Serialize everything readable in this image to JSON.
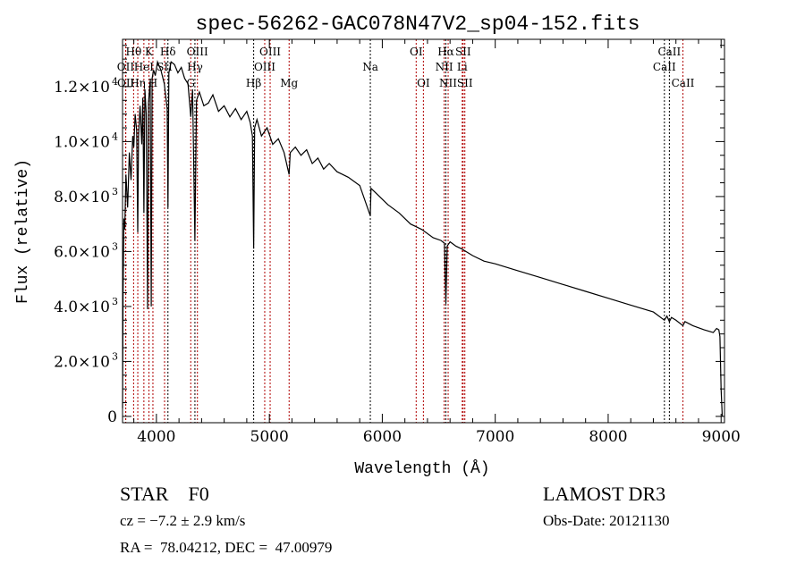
{
  "chart_data": {
    "type": "line",
    "title": "spec-56262-GAC078N47V2_sp04-152.fits",
    "xlabel": "Wavelength (Å)",
    "ylabel": "Flux (relative)",
    "xlim": [
      3700,
      9030
    ],
    "ylim": [
      -230,
      13720
    ],
    "grid": false,
    "xticks": [
      4000,
      5000,
      6000,
      7000,
      8000,
      9000
    ],
    "xtick_labels": [
      "4000",
      "5000",
      "6000",
      "7000",
      "8000",
      "9000"
    ],
    "yticks": [
      0,
      2000,
      4000,
      6000,
      8000,
      10000,
      12000
    ],
    "ytick_labels": [
      "0",
      "2.0×10^3",
      "4.0×10^3",
      "6.0×10^3",
      "8.0×10^3",
      "1.0×10^4",
      "1.2×10^4"
    ],
    "series": [
      {
        "name": "spectrum",
        "x": [
          3700,
          3705,
          3712,
          3720,
          3730,
          3745,
          3760,
          3775,
          3790,
          3800,
          3812,
          3825,
          3835,
          3842,
          3855,
          3870,
          3880,
          3889,
          3898,
          3910,
          3922,
          3930,
          3945,
          3954,
          3962,
          3975,
          3990,
          4010,
          4040,
          4070,
          4095,
          4102,
          4110,
          4130,
          4160,
          4190,
          4220,
          4250,
          4280,
          4304,
          4320,
          4341,
          4355,
          4380,
          4420,
          4460,
          4500,
          4550,
          4600,
          4650,
          4700,
          4750,
          4800,
          4830,
          4850,
          4861,
          4870,
          4890,
          4930,
          4980,
          5030,
          5080,
          5130,
          5175,
          5185,
          5230,
          5280,
          5330,
          5380,
          5430,
          5480,
          5530,
          5600,
          5700,
          5800,
          5894,
          5900,
          5950,
          6050,
          6150,
          6250,
          6300,
          6350,
          6450,
          6520,
          6550,
          6563,
          6575,
          6600,
          6650,
          6700,
          6800,
          6900,
          7000,
          7200,
          7400,
          7600,
          7800,
          8000,
          8200,
          8400,
          8498,
          8520,
          8542,
          8560,
          8600,
          8662,
          8680,
          8750,
          8850,
          8930,
          8960,
          8980,
          8990,
          9000,
          9010
        ],
        "y": [
          300,
          4500,
          7200,
          6800,
          8800,
          7600,
          9600,
          8600,
          10200,
          9800,
          11000,
          10400,
          6700,
          10200,
          11300,
          9900,
          11600,
          7400,
          11900,
          11000,
          3900,
          11400,
          12200,
          4000,
          12300,
          12600,
          12400,
          12900,
          12600,
          12100,
          11200,
          7600,
          12500,
          12900,
          12800,
          12500,
          12700,
          12300,
          12100,
          10900,
          11900,
          6400,
          11500,
          11800,
          11300,
          11400,
          11700,
          11100,
          11300,
          10900,
          11200,
          10800,
          11100,
          10700,
          10200,
          6100,
          10500,
          10800,
          10200,
          10500,
          9900,
          10100,
          9600,
          8800,
          9600,
          9800,
          9500,
          9700,
          9200,
          9400,
          9000,
          9200,
          8900,
          8700,
          8400,
          7300,
          8300,
          8100,
          7700,
          7400,
          7000,
          6900,
          6800,
          6500,
          6400,
          6300,
          4100,
          6200,
          6350,
          6200,
          6100,
          5850,
          5650,
          5550,
          5300,
          5050,
          4800,
          4550,
          4300,
          4050,
          3800,
          3500,
          3650,
          3450,
          3600,
          3500,
          3300,
          3450,
          3300,
          3150,
          3050,
          3200,
          3150,
          2900,
          1000,
          0
        ]
      }
    ],
    "annotations": [
      {
        "label": "Hθ",
        "wavelength": 3798,
        "row": 1,
        "color": "#b00000"
      },
      {
        "label": "K",
        "wavelength": 3934,
        "row": 1,
        "color": "#b00000"
      },
      {
        "label": "Hδ",
        "wavelength": 4102,
        "row": 1,
        "color": "#000000"
      },
      {
        "label": "OIII",
        "wavelength": 4363,
        "row": 1,
        "color": "#b00000"
      },
      {
        "label": "OIII",
        "wavelength": 5007,
        "row": 1,
        "color": "#b00000"
      },
      {
        "label": "OI",
        "wavelength": 6300,
        "row": 1,
        "color": "#b00000"
      },
      {
        "label": "Hα",
        "wavelength": 6563,
        "row": 1,
        "color": "#000000"
      },
      {
        "label": "SII",
        "wavelength": 6716,
        "row": 1,
        "color": "#b00000"
      },
      {
        "label": "CaII",
        "wavelength": 8542,
        "row": 1,
        "color": "#000000"
      },
      {
        "label": "OII",
        "wavelength": 3727,
        "row": 2,
        "color": "#b00000"
      },
      {
        "label": "HeI",
        "wavelength": 3889,
        "row": 2,
        "color": "#b00000"
      },
      {
        "label": "SII",
        "wavelength": 4072,
        "row": 2,
        "color": "#b00000"
      },
      {
        "label": "Hγ",
        "wavelength": 4341,
        "row": 2,
        "color": "#000000"
      },
      {
        "label": "OIII",
        "wavelength": 4959,
        "row": 2,
        "color": "#b00000"
      },
      {
        "label": "Na",
        "wavelength": 5894,
        "row": 2,
        "color": "#000000"
      },
      {
        "label": "NII",
        "wavelength": 6548,
        "row": 2,
        "color": "#b00000"
      },
      {
        "label": "Li",
        "wavelength": 6708,
        "row": 2,
        "color": "#b00000"
      },
      {
        "label": "CaII",
        "wavelength": 8498,
        "row": 2,
        "color": "#000000"
      },
      {
        "label": "OII",
        "wavelength": 3729,
        "row": 3,
        "color": "#b00000"
      },
      {
        "label": "Hη",
        "wavelength": 3835,
        "row": 3,
        "color": "#b00000"
      },
      {
        "label": "H",
        "wavelength": 3969,
        "row": 3,
        "color": "#b00000"
      },
      {
        "label": "G",
        "wavelength": 4304,
        "row": 3,
        "color": "#b00000"
      },
      {
        "label": "Hβ",
        "wavelength": 4861,
        "row": 3,
        "color": "#000000"
      },
      {
        "label": "Mg",
        "wavelength": 5175,
        "row": 3,
        "color": "#b00000"
      },
      {
        "label": "OI",
        "wavelength": 6364,
        "row": 3,
        "color": "#b00000"
      },
      {
        "label": "NII",
        "wavelength": 6583,
        "row": 3,
        "color": "#b00000"
      },
      {
        "label": "SII",
        "wavelength": 6731,
        "row": 3,
        "color": "#b00000"
      },
      {
        "label": "CaII",
        "wavelength": 8662,
        "row": 3,
        "color": "#b00000"
      }
    ]
  },
  "info": {
    "object_class": "STAR",
    "subclass": "F0",
    "redshift": "cz = −7.2 ± 2.9 km/s",
    "coords": "RA =  78.04212, DEC =  47.00979",
    "survey": "LAMOST DR3",
    "obs_date": "Obs-Date: 20121130"
  }
}
